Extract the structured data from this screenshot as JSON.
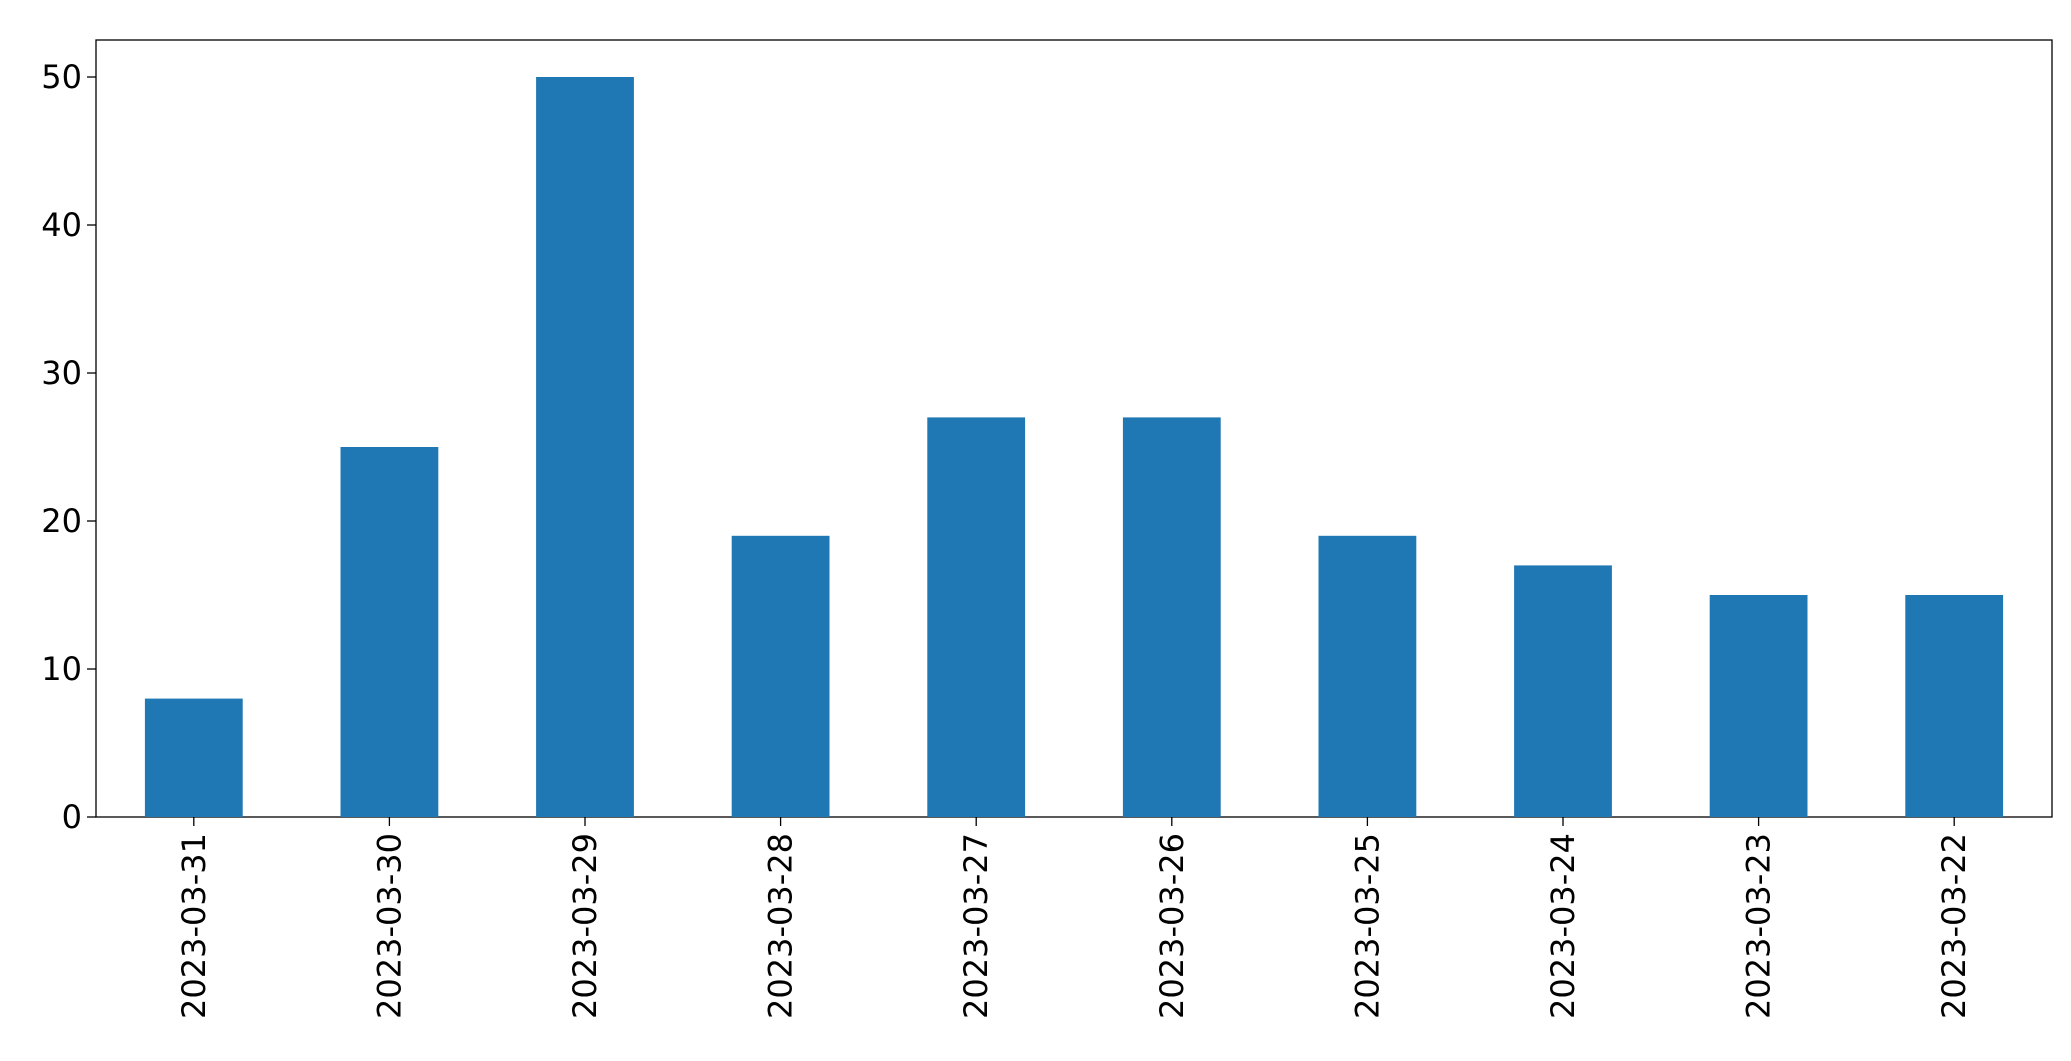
{
  "chart_data": {
    "type": "bar",
    "categories": [
      "2023-03-31",
      "2023-03-30",
      "2023-03-29",
      "2023-03-28",
      "2023-03-27",
      "2023-03-26",
      "2023-03-25",
      "2023-03-24",
      "2023-03-23",
      "2023-03-22"
    ],
    "values": [
      8,
      25,
      50,
      19,
      27,
      27,
      19,
      17,
      15,
      15
    ],
    "color": "#1f77b4",
    "ylim": [
      0,
      52.5
    ],
    "yticks": [
      0,
      10,
      20,
      30,
      40,
      50
    ],
    "grid": false
  }
}
